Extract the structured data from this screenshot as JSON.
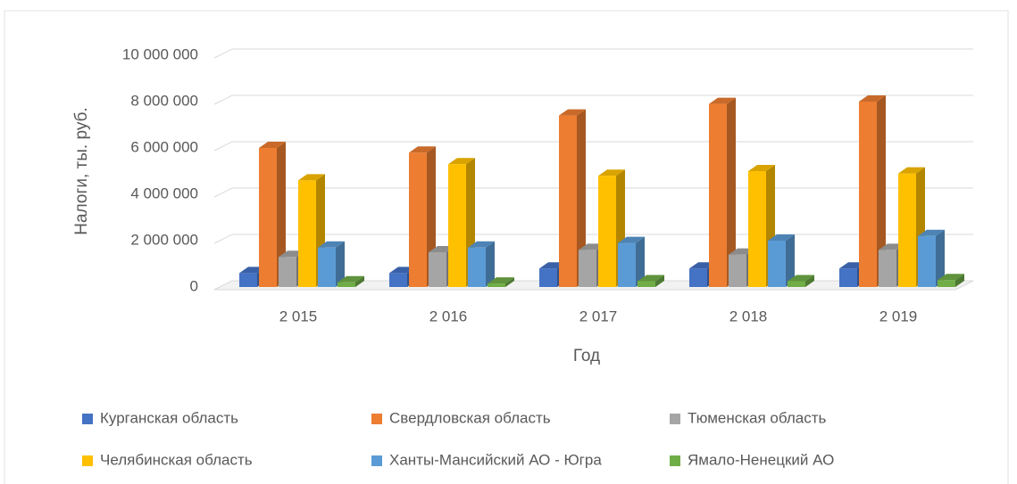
{
  "chart_data": {
    "type": "bar3d",
    "y_label": "Налоги, ты. руб.",
    "x_label": "Год",
    "categories": [
      "2 015",
      "2 016",
      "2 017",
      "2 018",
      "2 019"
    ],
    "series": [
      {
        "name": "Курганская область",
        "color": "#4472c4",
        "values": [
          600000,
          600000,
          800000,
          800000,
          800000
        ]
      },
      {
        "name": "Свердловская область",
        "color": "#ed7d31",
        "values": [
          6000000,
          5800000,
          7400000,
          7900000,
          8000000
        ]
      },
      {
        "name": "Тюменская область",
        "color": "#a5a5a5",
        "values": [
          1300000,
          1500000,
          1600000,
          1400000,
          1600000
        ]
      },
      {
        "name": "Челябинская область",
        "color": "#ffc000",
        "values": [
          4600000,
          5300000,
          4800000,
          5000000,
          4900000
        ]
      },
      {
        "name": "Ханты-Мансийский АО - Югра",
        "color": "#5b9bd5",
        "values": [
          1700000,
          1700000,
          1900000,
          2000000,
          2200000
        ]
      },
      {
        "name": "Ямало-Ненецкий АО",
        "color": "#70ad47",
        "values": [
          200000,
          150000,
          250000,
          250000,
          300000
        ]
      }
    ],
    "ylim": [
      0,
      10000000
    ],
    "yticks": [
      0,
      {
        "value": 2000000,
        "label": "2 000 000"
      },
      {
        "value": 4000000,
        "label": "4 000 000"
      },
      {
        "value": 6000000,
        "label": "6 000 000"
      },
      {
        "value": 8000000,
        "label": "8 000 000"
      },
      {
        "value": 10000000,
        "label": "10 000 000"
      }
    ],
    "grid": true,
    "legend": "bottom"
  }
}
